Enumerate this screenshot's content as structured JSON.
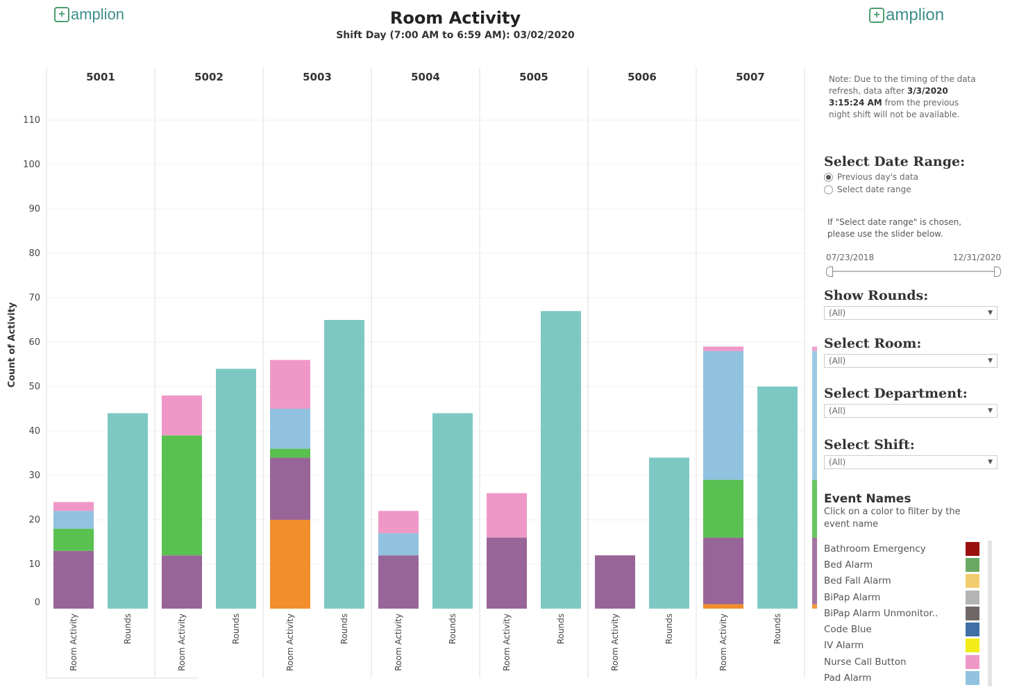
{
  "header": {
    "logo_text": "amplion",
    "title": "Room Activity",
    "subtitle": "Shift Day (7:00 AM to 6:59 AM): 03/02/2020"
  },
  "sidebar": {
    "note_prefix": "Note: Due to the timing of the data refresh, data after ",
    "note_bold": "3/3/2020 3:15:24 AM",
    "note_suffix": " from the previous night shift will not be available.",
    "date_range_title": "Select Date Range:",
    "radio_prev": "Previous day's data",
    "radio_select": "Select date range",
    "date_hint": "If \"Select date range\" is chosen, please use the slider below.",
    "slider_start": "07/23/2018",
    "slider_end": "12/31/2020",
    "show_rounds_title": "Show Rounds:",
    "show_rounds_value": "(All)",
    "room_title": "Select Room:",
    "room_value": "(All)",
    "department_title": "Select Department:",
    "department_value": "(All)",
    "shift_title": "Select Shift:",
    "shift_value": "(All)",
    "events_title": "Event Names",
    "events_hint": "Click on a color to filter by the event name",
    "legend": [
      {
        "name": "Bathroom Emergency",
        "color": "#9b0f0f"
      },
      {
        "name": "Bed Alarm",
        "color": "#6aa964"
      },
      {
        "name": "Bed Fall Alarm",
        "color": "#f2cd70"
      },
      {
        "name": "BiPap Alarm",
        "color": "#b4b4b4"
      },
      {
        "name": "BiPap Alarm Unmonitor..",
        "color": "#6f6766"
      },
      {
        "name": "Code Blue",
        "color": "#3f6fa4"
      },
      {
        "name": "IV Alarm",
        "color": "#f2ed1a"
      },
      {
        "name": "Nurse Call Button",
        "color": "#ef98c8"
      },
      {
        "name": "Pad Alarm",
        "color": "#91c2e0"
      }
    ]
  },
  "chart_data": {
    "type": "bar",
    "stacked": true,
    "ylabel": "Count of Activity",
    "ylim": [
      0,
      110
    ],
    "yticks": [
      0,
      10,
      20,
      30,
      40,
      50,
      60,
      70,
      80,
      90,
      100,
      110
    ],
    "rooms": [
      "5001",
      "5002",
      "5003",
      "5004",
      "5005",
      "5006",
      "5007"
    ],
    "categories": [
      "Room Activity",
      "Rounds"
    ],
    "colors": {
      "orange": "#f28e2b",
      "purple": "#986599",
      "green": "#59c150",
      "blue": "#91c2e0",
      "pink": "#ef98c8",
      "teal": "#7ec8c4"
    },
    "room_activity": [
      {
        "room": "5001",
        "segments": [
          {
            "color": "purple",
            "value": 13
          },
          {
            "color": "green",
            "value": 5
          },
          {
            "color": "blue",
            "value": 4
          },
          {
            "color": "pink",
            "value": 2
          }
        ]
      },
      {
        "room": "5002",
        "segments": [
          {
            "color": "purple",
            "value": 12
          },
          {
            "color": "green",
            "value": 27
          },
          {
            "color": "pink",
            "value": 9
          }
        ]
      },
      {
        "room": "5003",
        "segments": [
          {
            "color": "orange",
            "value": 20
          },
          {
            "color": "purple",
            "value": 14
          },
          {
            "color": "green",
            "value": 2
          },
          {
            "color": "blue",
            "value": 9
          },
          {
            "color": "pink",
            "value": 11
          }
        ]
      },
      {
        "room": "5004",
        "segments": [
          {
            "color": "purple",
            "value": 12
          },
          {
            "color": "blue",
            "value": 5
          },
          {
            "color": "pink",
            "value": 5
          }
        ]
      },
      {
        "room": "5005",
        "segments": [
          {
            "color": "purple",
            "value": 16
          },
          {
            "color": "pink",
            "value": 10
          }
        ]
      },
      {
        "room": "5006",
        "segments": [
          {
            "color": "purple",
            "value": 12
          }
        ]
      },
      {
        "room": "5007",
        "segments": [
          {
            "color": "orange",
            "value": 1
          },
          {
            "color": "purple",
            "value": 15
          },
          {
            "color": "green",
            "value": 13
          },
          {
            "color": "blue",
            "value": 29
          },
          {
            "color": "pink",
            "value": 1
          }
        ]
      }
    ],
    "rounds": [
      44,
      54,
      65,
      44,
      67,
      34,
      50
    ]
  }
}
